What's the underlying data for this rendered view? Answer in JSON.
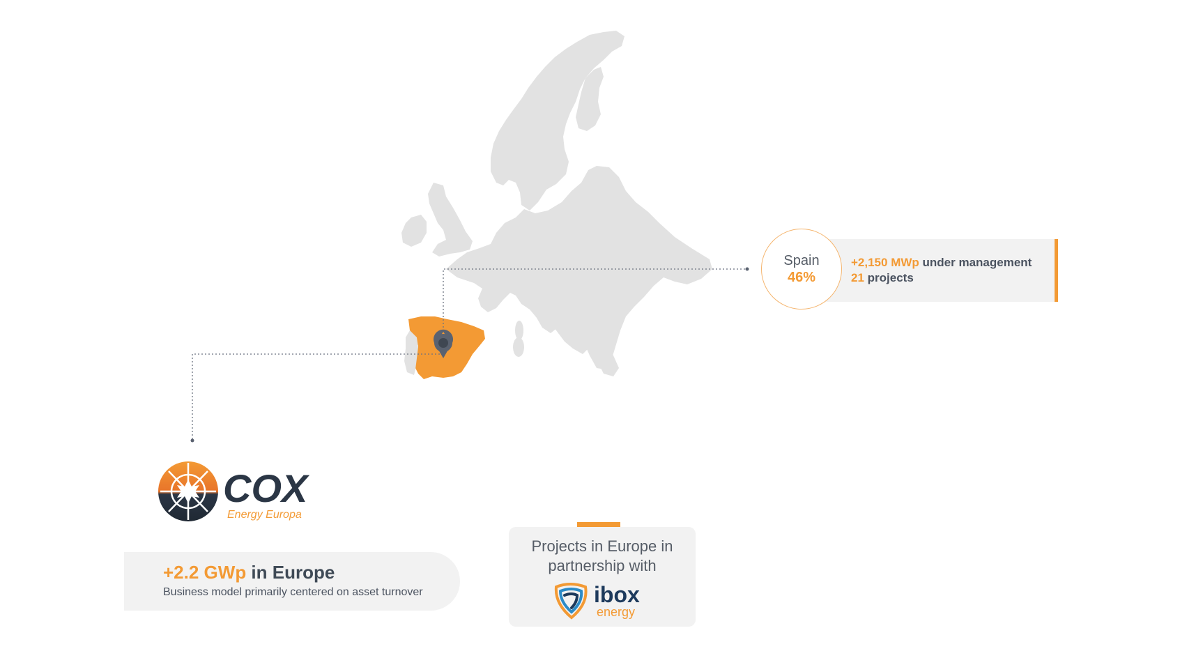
{
  "map": {
    "region": "Europe",
    "highlighted_country": "Spain",
    "colors": {
      "land": "#e2e2e2",
      "highlight": "#f39a34",
      "marker": "#5a6270",
      "connector": "#6b7280"
    },
    "marker_icon": "map-pin-icon"
  },
  "spain_callout": {
    "country": "Spain",
    "share": "46%",
    "capacity_value": "+2,150 MWp",
    "capacity_suffix": " under management",
    "projects_value": "21",
    "projects_suffix": " projects"
  },
  "cox_logo": {
    "name": "COX",
    "tagline": "Energy Europa",
    "colors": {
      "navy": "#2b3645",
      "orange": "#f39a34"
    }
  },
  "europe_summary": {
    "capacity_value": "+2.2 GWp",
    "capacity_suffix": " in Europe",
    "description": "Business model primarily centered on asset turnover"
  },
  "partnership": {
    "line1": "Projects in Europe in",
    "line2": "partnership with",
    "partner_name": "ibox",
    "partner_sub": "energy",
    "colors": {
      "navy": "#1d3a5c",
      "orange": "#f39a34",
      "blue": "#2c8bc7"
    }
  },
  "accent_color": "#f39a34"
}
